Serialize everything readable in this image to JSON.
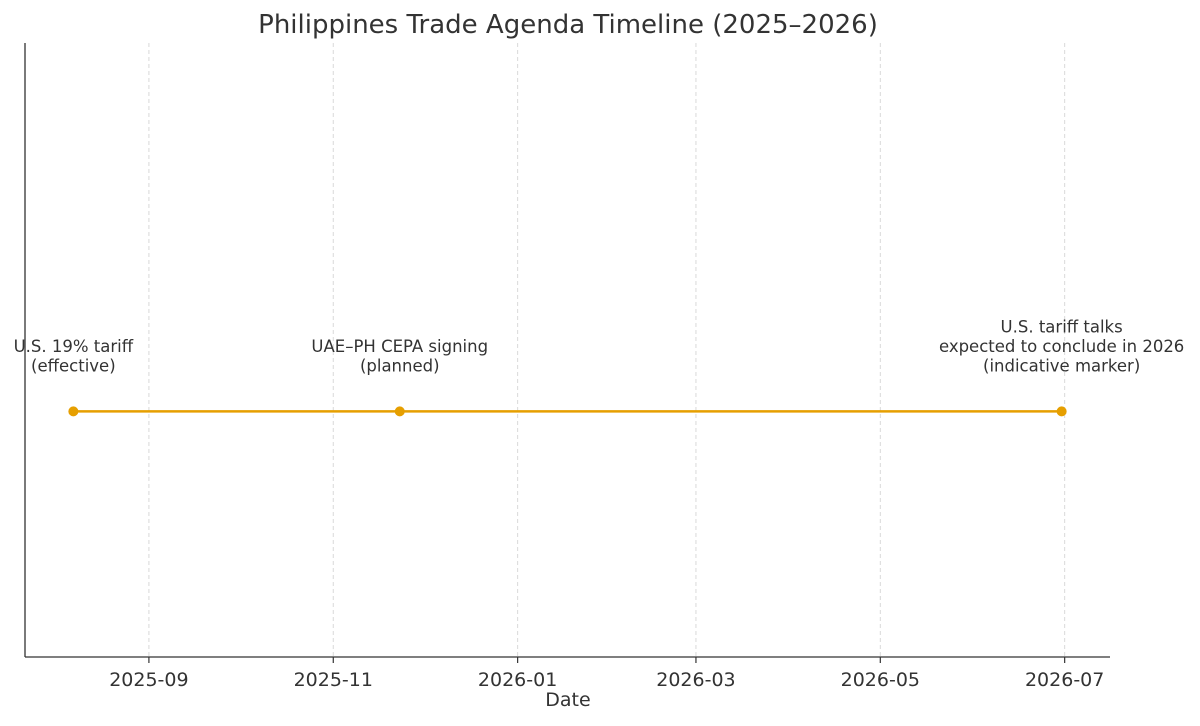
{
  "chart_data": {
    "type": "line",
    "title": "Philippines Trade Agenda Timeline (2025–2026)",
    "xlabel": "Date",
    "ylabel": "",
    "xlim": [
      "2025-07-22",
      "2026-07-16"
    ],
    "ylim": [
      -1,
      1.5
    ],
    "x_ticks": [
      "2025-09",
      "2025-11",
      "2026-01",
      "2026-03",
      "2026-05",
      "2026-07"
    ],
    "y_ticks_visible": false,
    "grid": "vertical dashed",
    "color": "#E69F00",
    "points": [
      {
        "date": "2025-08-07",
        "y": 0,
        "label": [
          "U.S. 19% tariff",
          "(effective)"
        ]
      },
      {
        "date": "2025-11-23",
        "y": 0,
        "label": [
          "UAE–PH CEPA signing",
          "(planned)"
        ]
      },
      {
        "date": "2026-06-30",
        "y": 0,
        "label": [
          "U.S. tariff talks",
          "expected to conclude in 2026",
          "(indicative marker)"
        ]
      }
    ]
  }
}
